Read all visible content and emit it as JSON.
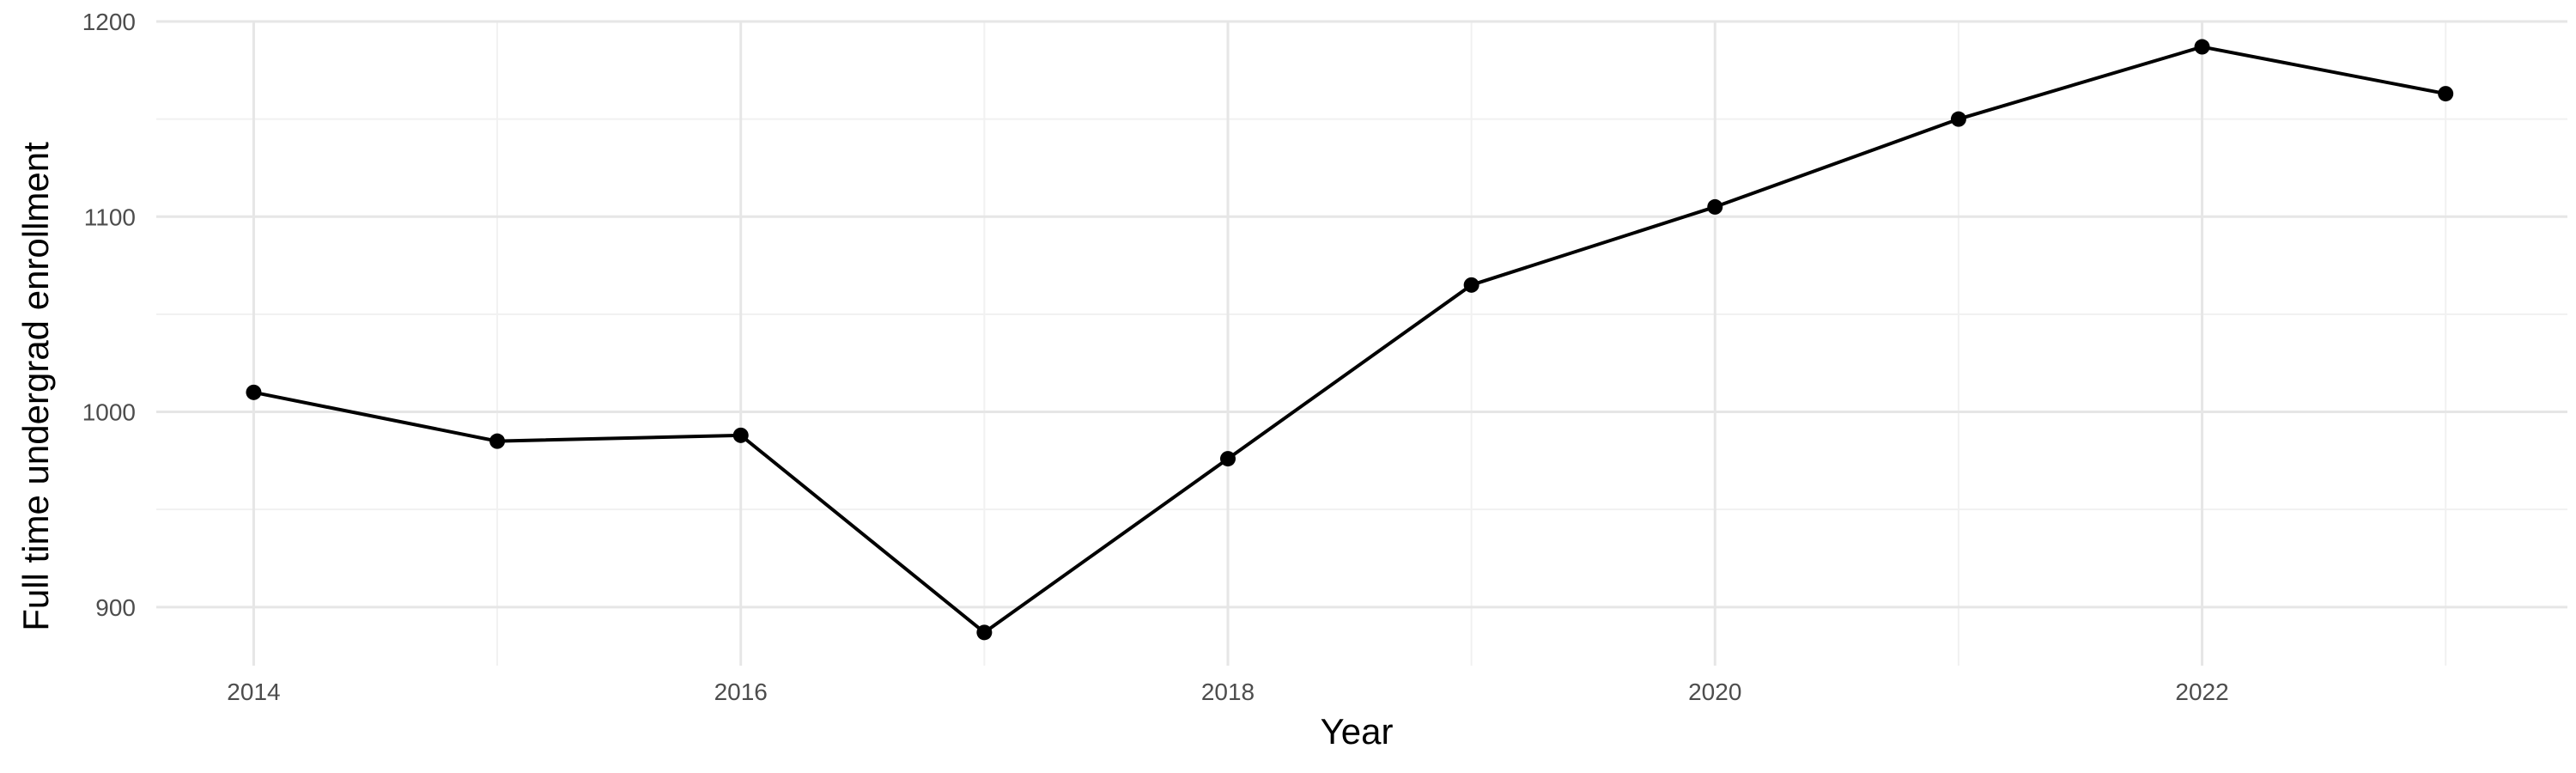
{
  "chart_data": {
    "type": "line",
    "title": "",
    "xlabel": "Year",
    "ylabel": "Full time undergrad enrollment",
    "x": [
      2014,
      2015,
      2016,
      2017,
      2018,
      2019,
      2020,
      2021,
      2022,
      2023
    ],
    "series": [
      {
        "values": [
          1010,
          985,
          988,
          887,
          976,
          1065,
          1105,
          1150,
          1187,
          1163
        ]
      }
    ],
    "xlim": [
      2013.6,
      2023.5
    ],
    "ylim": [
      870,
      1200
    ],
    "x_ticks": [
      2014,
      2016,
      2018,
      2020,
      2022
    ],
    "x_minor_ticks": [
      2015,
      2017,
      2019,
      2021,
      2023
    ],
    "y_ticks": [
      900,
      1000,
      1100,
      1200
    ],
    "y_minor_ticks": [
      950,
      1050,
      1150
    ],
    "grid": true,
    "legend": "none",
    "colors": {
      "line": "#000000",
      "grid": "#e6e6e6",
      "background": "#ffffff"
    }
  }
}
